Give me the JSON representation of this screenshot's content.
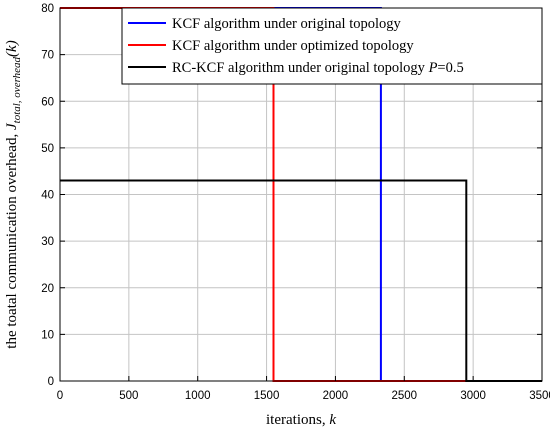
{
  "chart_data": {
    "type": "line",
    "xlabel_main": "iterations, ",
    "xlabel_var": "k",
    "ylabel_main": "the toatal communication overhead, ",
    "ylabel_var": "J",
    "ylabel_sub": "total, overhead",
    "ylabel_arg": "(k)",
    "xlim": [
      0,
      3500
    ],
    "ylim": [
      0,
      80
    ],
    "xticks": [
      0,
      500,
      1000,
      1500,
      2000,
      2500,
      3000,
      3500
    ],
    "yticks": [
      0,
      10,
      20,
      30,
      40,
      50,
      60,
      70,
      80
    ],
    "grid": true,
    "legend_position": "top-right",
    "series": [
      {
        "name": "KCF algorithm under original topology",
        "color": "#0000ff",
        "x": [
          0,
          2330,
          2330,
          3500
        ],
        "y": [
          80,
          80,
          0,
          0
        ]
      },
      {
        "name": "KCF algorithm under optimized topology",
        "color": "#ff0000",
        "x": [
          0,
          1550,
          1550,
          3500
        ],
        "y": [
          80,
          80,
          0,
          0
        ]
      },
      {
        "name": "RC-KCF algorithm under original topology ",
        "name_var": "P",
        "name_suffix": "=0.5",
        "color": "#000000",
        "x": [
          0,
          2950,
          2950,
          3500
        ],
        "y": [
          43,
          43,
          0,
          0
        ]
      }
    ]
  }
}
